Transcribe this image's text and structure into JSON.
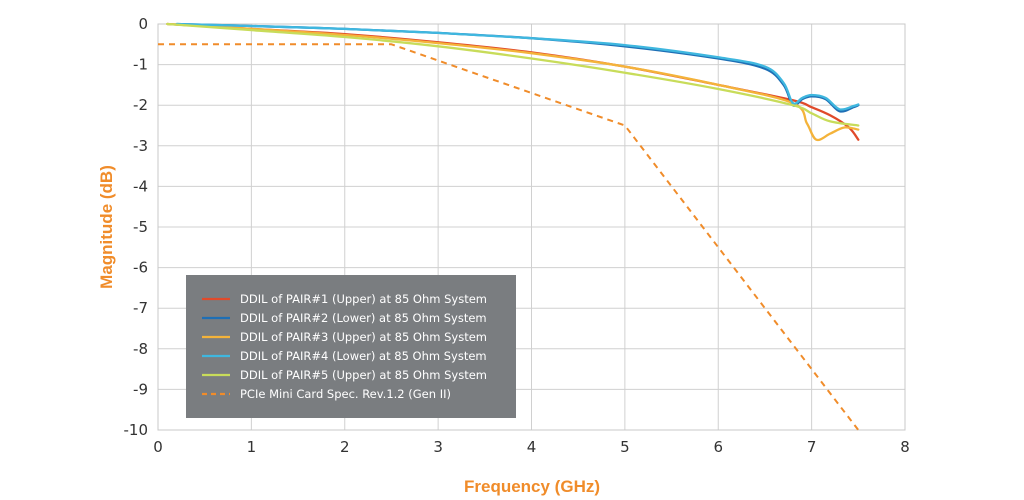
{
  "chart_data": {
    "type": "line",
    "xlabel": "Frequency (GHz)",
    "ylabel": "Magnitude (dB)",
    "xlim": [
      0,
      8
    ],
    "ylim": [
      -10,
      0
    ],
    "x_ticks": [
      0,
      1,
      2,
      3,
      4,
      5,
      6,
      7,
      8
    ],
    "y_ticks": [
      0,
      -1,
      -2,
      -3,
      -4,
      -5,
      -6,
      -7,
      -8,
      -9,
      -10
    ],
    "grid": true,
    "legend_position": "bottom-left",
    "legend_background": "#7a7d80",
    "series": [
      {
        "name": "DDIL of PAIR#1 (Upper) at 85 Ohm System",
        "color": "#e04a2a",
        "style": "solid",
        "points": [
          [
            0.1,
            0
          ],
          [
            1,
            -0.12
          ],
          [
            2,
            -0.25
          ],
          [
            3,
            -0.45
          ],
          [
            4,
            -0.7
          ],
          [
            5,
            -1.05
          ],
          [
            6,
            -1.5
          ],
          [
            6.8,
            -1.88
          ],
          [
            7.0,
            -2.05
          ],
          [
            7.2,
            -2.25
          ],
          [
            7.4,
            -2.55
          ],
          [
            7.5,
            -2.85
          ]
        ]
      },
      {
        "name": "DDIL of PAIR#2 (Lower) at 85 Ohm System",
        "color": "#1e6fb5",
        "style": "solid",
        "points": [
          [
            0.2,
            0
          ],
          [
            1,
            -0.05
          ],
          [
            2,
            -0.12
          ],
          [
            3,
            -0.22
          ],
          [
            4,
            -0.35
          ],
          [
            5,
            -0.55
          ],
          [
            6,
            -0.85
          ],
          [
            6.5,
            -1.1
          ],
          [
            6.7,
            -1.5
          ],
          [
            6.8,
            -2.0
          ],
          [
            6.9,
            -1.85
          ],
          [
            7.0,
            -1.78
          ],
          [
            7.15,
            -1.85
          ],
          [
            7.3,
            -2.15
          ],
          [
            7.45,
            -2.05
          ],
          [
            7.5,
            -2.0
          ]
        ]
      },
      {
        "name": "DDIL of PAIR#3 (Upper) at 85 Ohm System",
        "color": "#f4b33a",
        "style": "solid",
        "points": [
          [
            0.1,
            0
          ],
          [
            1,
            -0.12
          ],
          [
            2,
            -0.27
          ],
          [
            3,
            -0.47
          ],
          [
            4,
            -0.72
          ],
          [
            5,
            -1.05
          ],
          [
            6,
            -1.5
          ],
          [
            6.8,
            -1.95
          ],
          [
            6.95,
            -2.45
          ],
          [
            7.05,
            -2.85
          ],
          [
            7.2,
            -2.7
          ],
          [
            7.35,
            -2.55
          ],
          [
            7.5,
            -2.6
          ]
        ]
      },
      {
        "name": "DDIL of PAIR#4 (Lower) at 85 Ohm System",
        "color": "#3fb7df",
        "style": "solid",
        "points": [
          [
            0.2,
            0
          ],
          [
            1,
            -0.05
          ],
          [
            2,
            -0.12
          ],
          [
            3,
            -0.22
          ],
          [
            4,
            -0.35
          ],
          [
            5,
            -0.52
          ],
          [
            6,
            -0.82
          ],
          [
            6.5,
            -1.05
          ],
          [
            6.7,
            -1.45
          ],
          [
            6.8,
            -1.95
          ],
          [
            6.9,
            -1.82
          ],
          [
            7.0,
            -1.75
          ],
          [
            7.15,
            -1.82
          ],
          [
            7.3,
            -2.1
          ],
          [
            7.45,
            -2.02
          ],
          [
            7.5,
            -1.98
          ]
        ]
      },
      {
        "name": "DDIL of PAIR#5 (Upper) at 85 Ohm System",
        "color": "#c8dc5a",
        "style": "solid",
        "points": [
          [
            0.1,
            0
          ],
          [
            1,
            -0.15
          ],
          [
            2,
            -0.32
          ],
          [
            3,
            -0.55
          ],
          [
            4,
            -0.85
          ],
          [
            5,
            -1.2
          ],
          [
            6,
            -1.6
          ],
          [
            6.8,
            -2.0
          ],
          [
            7.0,
            -2.2
          ],
          [
            7.2,
            -2.4
          ],
          [
            7.5,
            -2.5
          ]
        ]
      },
      {
        "name": "PCIe Mini Card Spec. Rev.1.2 (Gen II)",
        "color": "#f08c2a",
        "style": "dashed",
        "points": [
          [
            0,
            -0.5
          ],
          [
            2.5,
            -0.5
          ],
          [
            5,
            -2.5
          ],
          [
            7.5,
            -10
          ]
        ]
      }
    ]
  }
}
